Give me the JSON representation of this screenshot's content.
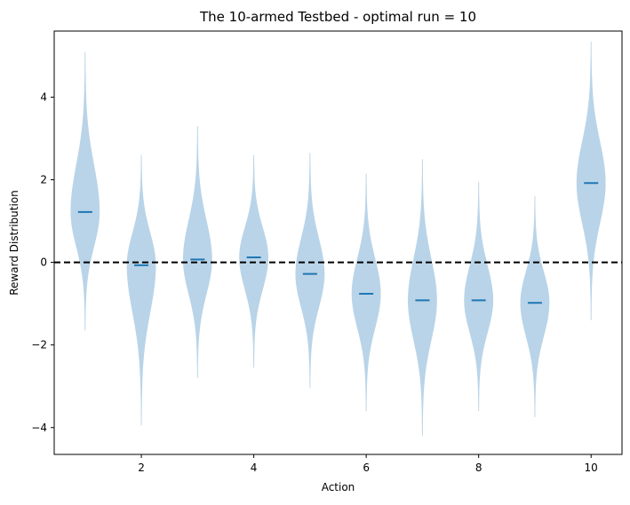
{
  "chart_data": {
    "type": "violin",
    "title": "The 10-armed Testbed - optimal run = 10",
    "xlabel": "Action",
    "ylabel": "Reward Distribution",
    "xlim": [
      0.45,
      10.55
    ],
    "ylim": [
      -4.65,
      5.6
    ],
    "xticks": [
      2,
      4,
      6,
      8,
      10
    ],
    "yticks": [
      -4,
      -2,
      0,
      2,
      4
    ],
    "ytick_labels": [
      "−4",
      "−2",
      "0",
      "2",
      "4"
    ],
    "violin_color": "#b9d4e8",
    "median_color": "#1f77b4",
    "hline": {
      "y": 0,
      "style": "dashed",
      "color": "#000000"
    },
    "categories": [
      1,
      2,
      3,
      4,
      5,
      6,
      7,
      8,
      9,
      10
    ],
    "medians": [
      1.22,
      -0.07,
      0.07,
      0.12,
      -0.28,
      -0.76,
      -0.92,
      -0.92,
      -0.98,
      1.92
    ],
    "mins": [
      -1.65,
      -3.95,
      -2.8,
      -2.55,
      -3.05,
      -3.6,
      -4.2,
      -3.6,
      -3.75,
      -1.4
    ],
    "maxs": [
      5.1,
      2.6,
      3.3,
      2.6,
      2.65,
      2.15,
      2.5,
      1.95,
      1.6,
      5.35
    ]
  }
}
